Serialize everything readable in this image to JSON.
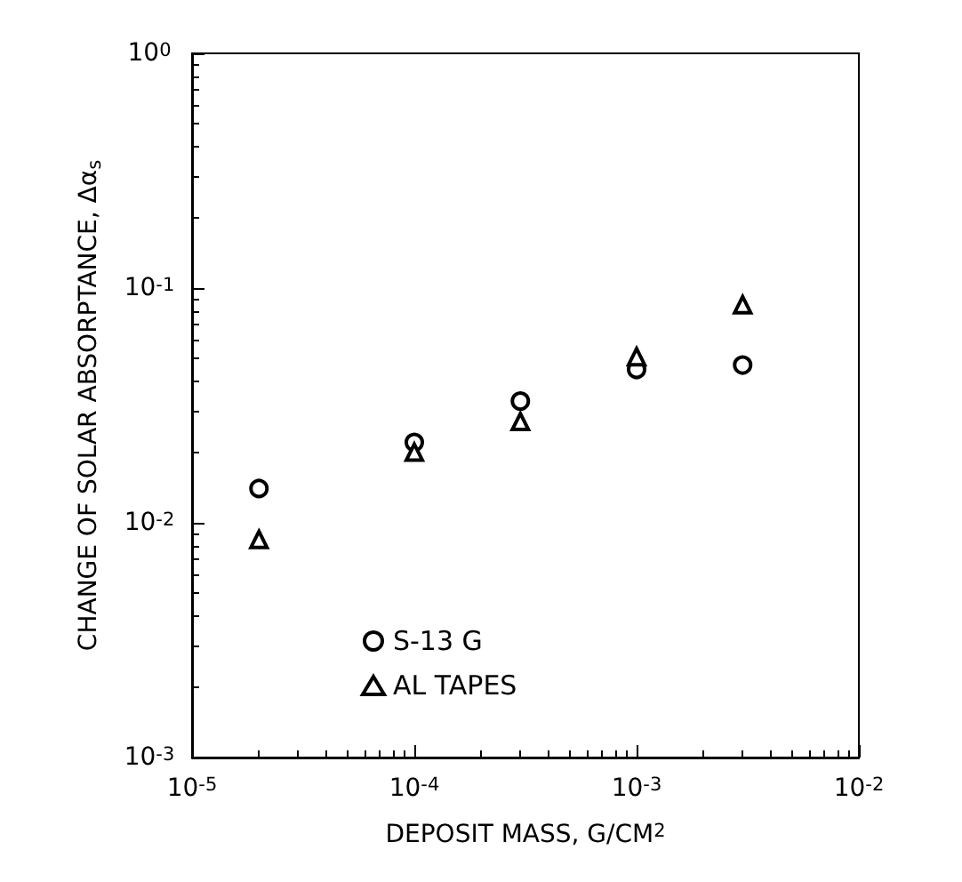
{
  "chart_data": {
    "type": "scatter",
    "xlabel": "DEPOSIT MASS, G/CM$^{2}$",
    "ylabel": "CHANGE OF SOLAR ABSORPTANCE, Δα$_{s}$",
    "x": [
      2e-05,
      0.0001,
      0.0003,
      0.001,
      0.003
    ],
    "series": [
      {
        "name": "S-13 G",
        "color": "#000000",
        "marker": "circle",
        "values": [
          0.014,
          0.022,
          0.033,
          0.045,
          0.047
        ]
      },
      {
        "name": "AL TAPES",
        "color": "#000000",
        "marker": "triangle",
        "values": [
          0.0085,
          0.02,
          0.027,
          0.051,
          0.085
        ]
      }
    ],
    "log": "xy",
    "xlim": [
      1e-05,
      0.01
    ],
    "ylim": [
      0.001,
      1
    ],
    "xticks": [
      {
        "value": 1e-05,
        "label": "10$^{-5}$"
      },
      {
        "value": 0.0001,
        "label": "10$^{-4}$"
      },
      {
        "value": 0.001,
        "label": "10$^{-3}$"
      },
      {
        "value": 0.01,
        "label": "10$^{-2}$"
      }
    ],
    "yticks": [
      {
        "value": 0.001,
        "label": "10$^{-3}$"
      },
      {
        "value": 0.01,
        "label": "10$^{-2}$"
      },
      {
        "value": 0.1,
        "label": "10$^{-1}$"
      },
      {
        "value": 1,
        "label": "10$^{0}$"
      }
    ],
    "grid": false,
    "legend": "bottom left"
  }
}
